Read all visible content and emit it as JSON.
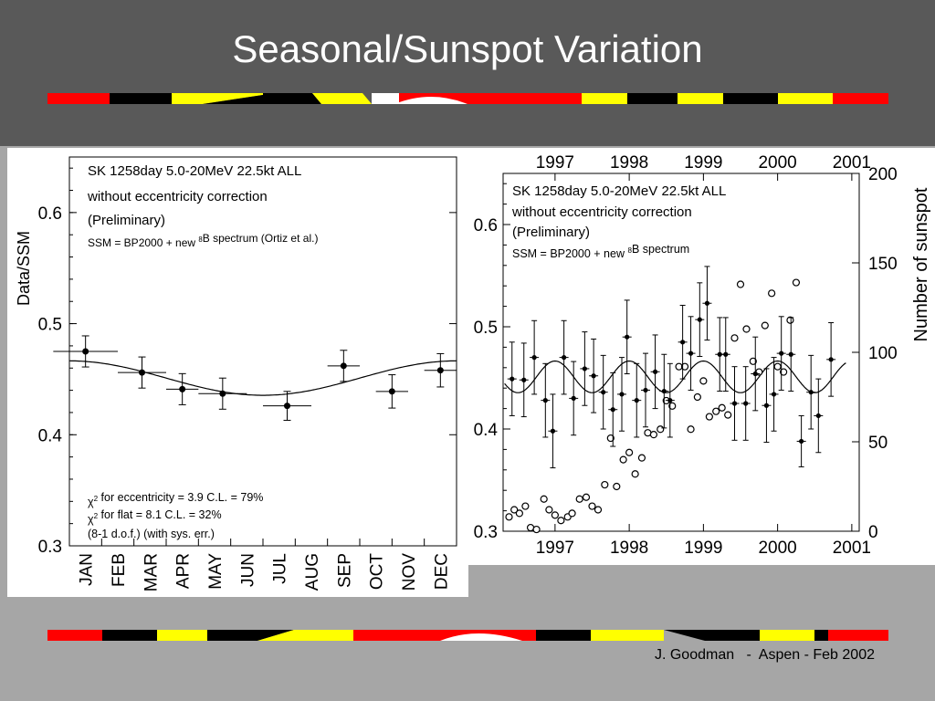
{
  "slide": {
    "title": "Seasonal/Sunspot Variation",
    "footer": "J. Goodman   -  Aspen - Feb 2002"
  },
  "colors": {
    "background_top": "#595959",
    "background_bottom": "#a6a6a6",
    "title": "#ffffff",
    "stripe_red": "#ff0000",
    "stripe_black": "#000000",
    "stripe_yellow": "#ffff00"
  },
  "chart_data": [
    {
      "type": "scatter",
      "ylabel": "Data/SSM",
      "ylim": [
        0.3,
        0.65
      ],
      "yticks": [
        "0.3",
        "0.4",
        "0.5",
        "0.6"
      ],
      "categories": [
        "JAN",
        "FEB",
        "MAR",
        "APR",
        "MAY",
        "JUN",
        "JUL",
        "AUG",
        "SEP",
        "OCT",
        "NOV",
        "DEC"
      ],
      "annotations": [
        "SK  1258day  5.0-20MeV  22.5kt  ALL",
        "without eccentricity correction",
        "(Preliminary)",
        "SSM = BP2000 + new ⁸B spectrum (Ortiz et al.)"
      ],
      "chi_notes": [
        "χ² for eccentricity = 3.9   C.L. = 79%",
        "χ² for flat = 8.1  C.L. = 32%",
        "(8-1 d.o.f.) (with sys. err.)"
      ],
      "points": [
        {
          "x": 0.5,
          "y": 0.475,
          "xerr": 1.0,
          "yerr": 0.014
        },
        {
          "x": 2.25,
          "y": 0.456,
          "xerr": 0.75,
          "yerr": 0.014
        },
        {
          "x": 3.5,
          "y": 0.441,
          "xerr": 0.5,
          "yerr": 0.014
        },
        {
          "x": 4.75,
          "y": 0.437,
          "xerr": 0.75,
          "yerr": 0.014
        },
        {
          "x": 6.75,
          "y": 0.426,
          "xerr": 0.75,
          "yerr": 0.013
        },
        {
          "x": 8.5,
          "y": 0.462,
          "xerr": 0.5,
          "yerr": 0.014
        },
        {
          "x": 10.0,
          "y": 0.439,
          "xerr": 0.5,
          "yerr": 0.015
        },
        {
          "x": 11.5,
          "y": 0.458,
          "xerr": 0.5,
          "yerr": 0.015
        }
      ],
      "curve": {
        "series": "eccentricity expectation",
        "mean": 0.451,
        "amplitude": 0.0155
      }
    },
    {
      "type": "scatter",
      "ylabel": "Number of sunspot",
      "ylim": [
        0.3,
        0.65
      ],
      "y2lim": [
        0,
        200
      ],
      "xlim": [
        1996.3,
        2001.1
      ],
      "x_tick_labels": [
        "1997",
        "1998",
        "1999",
        "2000",
        "2001"
      ],
      "yticks": [
        "0.3",
        "0.4",
        "0.5",
        "0.6"
      ],
      "y2ticks": [
        "0",
        "50",
        "100",
        "150",
        "200"
      ],
      "annotations": [
        "SK  1258day  5.0-20MeV  22.5kt  ALL",
        "without eccentricity correction",
        "(Preliminary)",
        "SSM = BP2000 + new ⁸B spectrum"
      ],
      "solar_points": [
        {
          "x": 1996.42,
          "y": 0.449,
          "yerr": 0.036
        },
        {
          "x": 1996.58,
          "y": 0.448,
          "yerr": 0.036
        },
        {
          "x": 1996.72,
          "y": 0.47,
          "yerr": 0.036
        },
        {
          "x": 1996.87,
          "y": 0.428,
          "yerr": 0.036
        },
        {
          "x": 1996.97,
          "y": 0.398,
          "yerr": 0.036
        },
        {
          "x": 1997.12,
          "y": 0.47,
          "yerr": 0.036
        },
        {
          "x": 1997.25,
          "y": 0.43,
          "yerr": 0.036
        },
        {
          "x": 1997.4,
          "y": 0.459,
          "yerr": 0.036
        },
        {
          "x": 1997.52,
          "y": 0.452,
          "yerr": 0.036
        },
        {
          "x": 1997.65,
          "y": 0.436,
          "yerr": 0.036
        },
        {
          "x": 1997.78,
          "y": 0.419,
          "yerr": 0.036
        },
        {
          "x": 1997.9,
          "y": 0.434,
          "yerr": 0.036
        },
        {
          "x": 1997.97,
          "y": 0.49,
          "yerr": 0.036
        },
        {
          "x": 1998.1,
          "y": 0.428,
          "yerr": 0.036
        },
        {
          "x": 1998.22,
          "y": 0.438,
          "yerr": 0.036
        },
        {
          "x": 1998.35,
          "y": 0.456,
          "yerr": 0.036
        },
        {
          "x": 1998.47,
          "y": 0.437,
          "yerr": 0.036
        },
        {
          "x": 1998.55,
          "y": 0.428,
          "yerr": 0.036
        },
        {
          "x": 1998.72,
          "y": 0.485,
          "yerr": 0.036
        },
        {
          "x": 1998.83,
          "y": 0.474,
          "yerr": 0.036
        },
        {
          "x": 1998.95,
          "y": 0.507,
          "yerr": 0.036
        },
        {
          "x": 1999.05,
          "y": 0.523,
          "yerr": 0.036
        },
        {
          "x": 1999.22,
          "y": 0.473,
          "yerr": 0.036
        },
        {
          "x": 1999.3,
          "y": 0.473,
          "yerr": 0.036
        },
        {
          "x": 1999.42,
          "y": 0.425,
          "yerr": 0.036
        },
        {
          "x": 1999.57,
          "y": 0.425,
          "yerr": 0.036
        },
        {
          "x": 1999.7,
          "y": 0.454,
          "yerr": 0.036
        },
        {
          "x": 1999.85,
          "y": 0.423,
          "yerr": 0.036
        },
        {
          "x": 1999.95,
          "y": 0.434,
          "yerr": 0.036
        },
        {
          "x": 2000.05,
          "y": 0.474,
          "yerr": 0.036
        },
        {
          "x": 2000.18,
          "y": 0.473,
          "yerr": 0.036
        },
        {
          "x": 2000.32,
          "y": 0.388,
          "yerr": 0.025
        },
        {
          "x": 2000.45,
          "y": 0.436,
          "yerr": 0.036
        },
        {
          "x": 2000.55,
          "y": 0.413,
          "yerr": 0.036
        },
        {
          "x": 2000.72,
          "y": 0.468,
          "yerr": 0.036
        }
      ],
      "sunspots": [
        {
          "x": 1996.38,
          "y": 8
        },
        {
          "x": 1996.45,
          "y": 12
        },
        {
          "x": 1996.52,
          "y": 10
        },
        {
          "x": 1996.6,
          "y": 14
        },
        {
          "x": 1996.67,
          "y": 2
        },
        {
          "x": 1996.75,
          "y": 1
        },
        {
          "x": 1996.85,
          "y": 18
        },
        {
          "x": 1996.92,
          "y": 12
        },
        {
          "x": 1997.0,
          "y": 9
        },
        {
          "x": 1997.08,
          "y": 6
        },
        {
          "x": 1997.17,
          "y": 8
        },
        {
          "x": 1997.23,
          "y": 10
        },
        {
          "x": 1997.33,
          "y": 18
        },
        {
          "x": 1997.42,
          "y": 19
        },
        {
          "x": 1997.5,
          "y": 14
        },
        {
          "x": 1997.58,
          "y": 12
        },
        {
          "x": 1997.67,
          "y": 26
        },
        {
          "x": 1997.75,
          "y": 52
        },
        {
          "x": 1997.83,
          "y": 25
        },
        {
          "x": 1997.92,
          "y": 40
        },
        {
          "x": 1998.0,
          "y": 44
        },
        {
          "x": 1998.08,
          "y": 32
        },
        {
          "x": 1998.17,
          "y": 41
        },
        {
          "x": 1998.25,
          "y": 55
        },
        {
          "x": 1998.33,
          "y": 54
        },
        {
          "x": 1998.42,
          "y": 57
        },
        {
          "x": 1998.5,
          "y": 73
        },
        {
          "x": 1998.58,
          "y": 70
        },
        {
          "x": 1998.67,
          "y": 92
        },
        {
          "x": 1998.75,
          "y": 92
        },
        {
          "x": 1998.83,
          "y": 57
        },
        {
          "x": 1998.92,
          "y": 75
        },
        {
          "x": 1999.0,
          "y": 84
        },
        {
          "x": 1999.08,
          "y": 64
        },
        {
          "x": 1999.17,
          "y": 67
        },
        {
          "x": 1999.25,
          "y": 69
        },
        {
          "x": 1999.33,
          "y": 65
        },
        {
          "x": 1999.42,
          "y": 108
        },
        {
          "x": 1999.5,
          "y": 138
        },
        {
          "x": 1999.58,
          "y": 113
        },
        {
          "x": 1999.67,
          "y": 95
        },
        {
          "x": 1999.75,
          "y": 89
        },
        {
          "x": 1999.83,
          "y": 115
        },
        {
          "x": 1999.92,
          "y": 133
        },
        {
          "x": 2000.0,
          "y": 92
        },
        {
          "x": 2000.08,
          "y": 89
        },
        {
          "x": 2000.17,
          "y": 118
        },
        {
          "x": 2000.25,
          "y": 139
        }
      ],
      "curve": {
        "series": "eccentricity expectation",
        "mean": 0.451,
        "amplitude": 0.0155
      }
    }
  ]
}
